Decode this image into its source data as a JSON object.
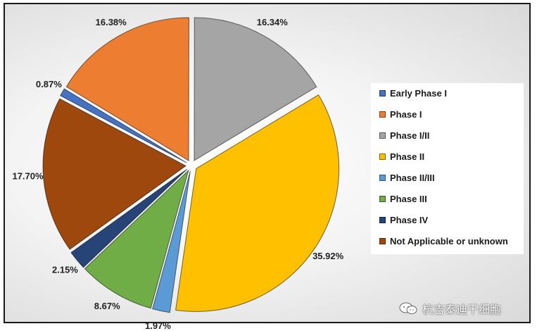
{
  "chart_data": {
    "type": "pie",
    "title": "",
    "legend_position": "right",
    "slices": [
      {
        "label": "Early Phase I",
        "value": 0.87,
        "display": "0.87%",
        "color": "#4472C4"
      },
      {
        "label": "Phase I",
        "value": 16.38,
        "display": "16.38%",
        "color": "#ED7D31"
      },
      {
        "label": "Phase I/II",
        "value": 16.34,
        "display": "16.34%",
        "color": "#A5A5A5"
      },
      {
        "label": "Phase II",
        "value": 35.92,
        "display": "35.92%",
        "color": "#FFC000"
      },
      {
        "label": "Phase II/III",
        "value": 1.97,
        "display": "1.97%",
        "color": "#5B9BD5"
      },
      {
        "label": "Phase III",
        "value": 8.67,
        "display": "8.67%",
        "color": "#70AD47"
      },
      {
        "label": "Phase IV",
        "value": 2.15,
        "display": "2.15%",
        "color": "#264478"
      },
      {
        "label": "Not Applicable or unknown",
        "value": 17.7,
        "display": "17.70%",
        "color": "#9E480E"
      }
    ]
  },
  "watermark": {
    "text": "杭吉泰迪干细胞",
    "logo_icon": "wechat-icon"
  }
}
